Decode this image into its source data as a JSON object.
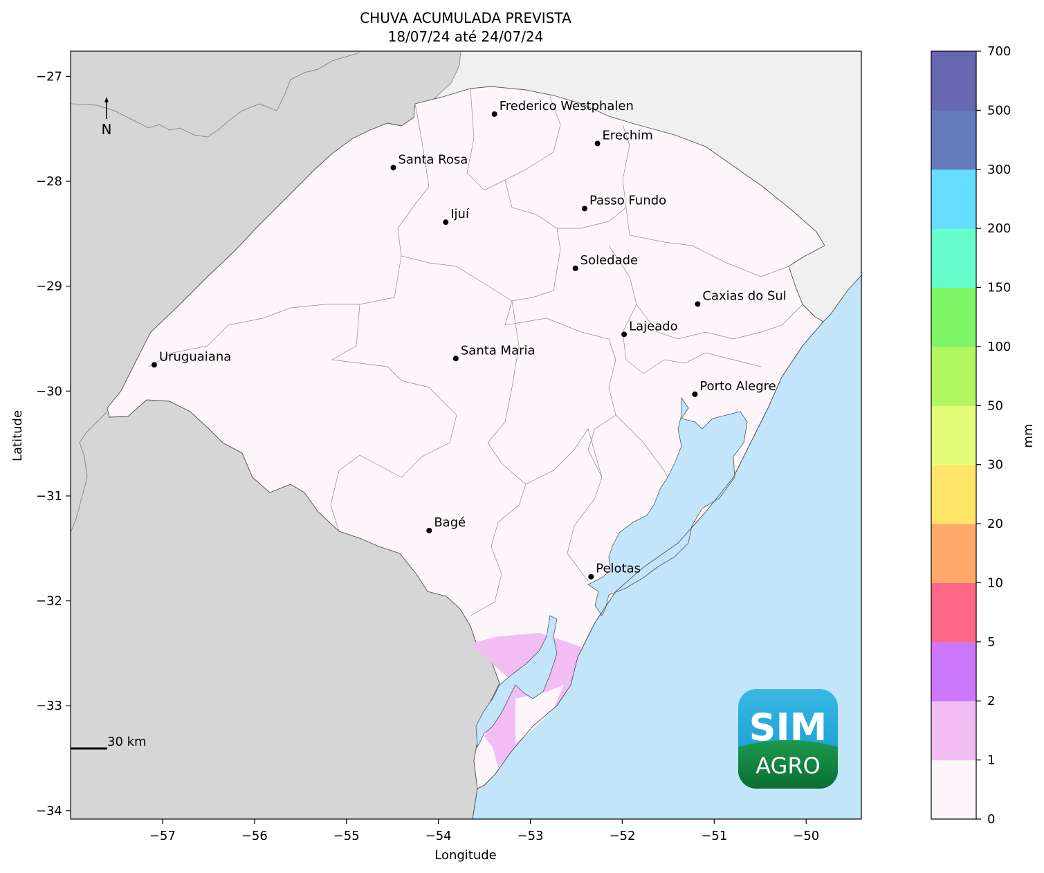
{
  "title": {
    "line1": "CHUVA ACUMULADA PREVISTA",
    "line2": "18/07/24 até 24/07/24"
  },
  "axes": {
    "xlabel": "Longitude",
    "ylabel": "Latitude",
    "xlim": [
      -58.0,
      -49.4
    ],
    "ylim": [
      -34.08,
      -26.76
    ],
    "xticks": [
      -57,
      -56,
      -55,
      -54,
      -53,
      -52,
      -51,
      -50
    ],
    "yticks": [
      -27,
      -28,
      -29,
      -30,
      -31,
      -32,
      -33,
      -34
    ],
    "xtick_labels": [
      "−57",
      "−56",
      "−55",
      "−54",
      "−53",
      "−52",
      "−51",
      "−50"
    ],
    "ytick_labels": [
      "−27",
      "−28",
      "−29",
      "−30",
      "−31",
      "−32",
      "−33",
      "−34"
    ]
  },
  "north_arrow": {
    "label": "N"
  },
  "scale_bar": {
    "label": "30 km"
  },
  "logo": {
    "line1": "SIM",
    "line2": "AGRO"
  },
  "colorbar": {
    "label": "mm",
    "ticks": [
      "0",
      "1",
      "2",
      "5",
      "10",
      "20",
      "30",
      "50",
      "100",
      "150",
      "200",
      "300",
      "500",
      "700"
    ],
    "colors": [
      "#fcf6fb",
      "#f2bdf2",
      "#cc77fb",
      "#fe6886",
      "#fea96a",
      "#fee567",
      "#e5fd78",
      "#b1f661",
      "#7ef566",
      "#66fdcc",
      "#66ddfe",
      "#647ab9",
      "#6766b0"
    ]
  },
  "colors": {
    "land_outside": "#d6d6d6",
    "land_north": "#f0f0f0",
    "state_fill": "#fcf6fb",
    "water": "#c2e5fa",
    "rain_1_2mm": "#f2bdf2"
  },
  "chart_data": {
    "type": "map",
    "title": "CHUVA ACUMULADA PREVISTA 18/07/24 até 24/07/24",
    "xlabel": "Longitude",
    "ylabel": "Latitude",
    "xlim": [
      -58.0,
      -49.4
    ],
    "ylim": [
      -34.08,
      -26.76
    ],
    "grid": false,
    "colorbar_levels_mm": [
      0,
      1,
      2,
      5,
      10,
      20,
      30,
      50,
      100,
      150,
      200,
      300,
      500,
      700
    ],
    "predominant_class_mm": [
      0,
      1
    ],
    "secondary_areas": [
      {
        "class_mm": [
          1,
          2
        ],
        "region": "extremo sul (Lagoa Mirim / Chuí)"
      }
    ],
    "cities": [
      {
        "name": "Frederico Westphalen",
        "lon": -53.39,
        "lat": -27.36
      },
      {
        "name": "Erechim",
        "lon": -52.27,
        "lat": -27.64
      },
      {
        "name": "Santa Rosa",
        "lon": -54.49,
        "lat": -27.87
      },
      {
        "name": "Passo Fundo",
        "lon": -52.41,
        "lat": -28.26
      },
      {
        "name": "Ijuí",
        "lon": -53.92,
        "lat": -28.39
      },
      {
        "name": "Soledade",
        "lon": -52.51,
        "lat": -28.83
      },
      {
        "name": "Caxias do Sul",
        "lon": -51.18,
        "lat": -29.17
      },
      {
        "name": "Lajeado",
        "lon": -51.98,
        "lat": -29.46
      },
      {
        "name": "Uruguaiana",
        "lon": -57.09,
        "lat": -29.75
      },
      {
        "name": "Santa Maria",
        "lon": -53.81,
        "lat": -29.69
      },
      {
        "name": "Porto Alegre",
        "lon": -51.21,
        "lat": -30.03
      },
      {
        "name": "Bagé",
        "lon": -54.1,
        "lat": -31.33
      },
      {
        "name": "Pelotas",
        "lon": -52.34,
        "lat": -31.77
      }
    ]
  }
}
